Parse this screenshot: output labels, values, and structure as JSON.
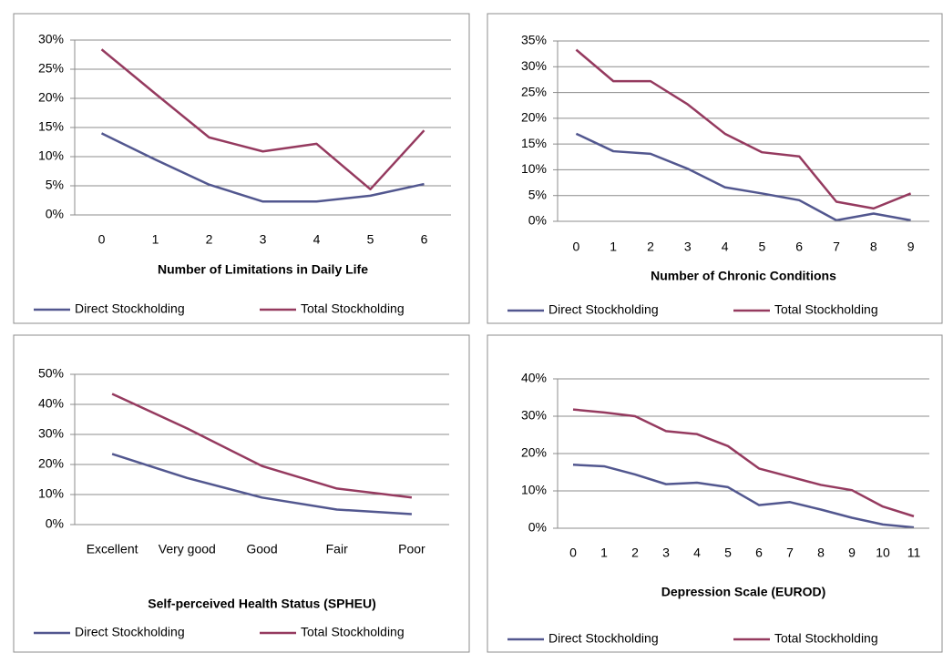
{
  "chart_data": [
    {
      "type": "line",
      "x_label": "Number of Limitations in Daily Life",
      "categories": [
        "0",
        "1",
        "2",
        "3",
        "4",
        "5",
        "6"
      ],
      "series": [
        {
          "name": "Direct Stockholding",
          "color": "#52578f",
          "values": [
            14,
            9.5,
            5.2,
            2.3,
            2.3,
            3.3,
            5.3
          ]
        },
        {
          "name": "Total Stockholding",
          "color": "#953a5f",
          "values": [
            28.4,
            20.8,
            13.3,
            10.9,
            12.2,
            4.4,
            14.5
          ]
        }
      ],
      "ylim": [
        0,
        30
      ],
      "yticks": [
        {
          "value": 0,
          "label": "0%"
        },
        {
          "value": 5,
          "label": "5%"
        },
        {
          "value": 10,
          "label": "10%"
        },
        {
          "value": 15,
          "label": "15%"
        },
        {
          "value": 20,
          "label": "20%"
        },
        {
          "value": 25,
          "label": "25%"
        },
        {
          "value": 30,
          "label": "30%"
        }
      ],
      "grid": true,
      "legend": "bottom"
    },
    {
      "type": "line",
      "x_label": "Number of Chronic Conditions",
      "categories": [
        "0",
        "1",
        "2",
        "3",
        "4",
        "5",
        "6",
        "7",
        "8",
        "9"
      ],
      "series": [
        {
          "name": "Direct Stockholding",
          "color": "#52578f",
          "values": [
            17,
            13.6,
            13.1,
            10.2,
            6.6,
            5.4,
            4.1,
            0.2,
            1.5,
            0.2
          ]
        },
        {
          "name": "Total Stockholding",
          "color": "#953a5f",
          "values": [
            33.3,
            27.2,
            27.2,
            22.7,
            17,
            13.4,
            12.6,
            3.8,
            2.5,
            5.4
          ]
        }
      ],
      "ylim": [
        0,
        35
      ],
      "yticks": [
        {
          "value": 0,
          "label": "0%"
        },
        {
          "value": 5,
          "label": "5%"
        },
        {
          "value": 10,
          "label": "10%"
        },
        {
          "value": 15,
          "label": "15%"
        },
        {
          "value": 20,
          "label": "20%"
        },
        {
          "value": 25,
          "label": "25%"
        },
        {
          "value": 30,
          "label": "30%"
        },
        {
          "value": 35,
          "label": "35%"
        }
      ],
      "grid": true,
      "legend": "bottom"
    },
    {
      "type": "line",
      "x_label": "Self-perceived Health Status (SPHEU)",
      "categories": [
        "Excellent",
        "Very good",
        "Good",
        "Fair",
        "Poor"
      ],
      "series": [
        {
          "name": "Direct Stockholding",
          "color": "#52578f",
          "values": [
            23.5,
            15.5,
            9,
            5,
            3.5
          ]
        },
        {
          "name": "Total Stockholding",
          "color": "#953a5f",
          "values": [
            43.5,
            32,
            19.5,
            12,
            9
          ]
        }
      ],
      "ylim": [
        0,
        50
      ],
      "yticks": [
        {
          "value": 0,
          "label": "0%"
        },
        {
          "value": 10,
          "label": "10%"
        },
        {
          "value": 20,
          "label": "20%"
        },
        {
          "value": 30,
          "label": "30%"
        },
        {
          "value": 40,
          "label": "40%"
        },
        {
          "value": 50,
          "label": "50%"
        }
      ],
      "grid": true,
      "legend": "bottom"
    },
    {
      "type": "line",
      "x_label": "Depression Scale (EUROD)",
      "categories": [
        "0",
        "1",
        "2",
        "3",
        "4",
        "5",
        "6",
        "7",
        "8",
        "9",
        "10",
        "11"
      ],
      "series": [
        {
          "name": "Direct Stockholding",
          "color": "#52578f",
          "values": [
            17,
            16.6,
            14.4,
            11.8,
            12.2,
            11,
            6.2,
            7,
            5,
            2.8,
            1,
            0.2
          ]
        },
        {
          "name": "Total Stockholding",
          "color": "#953a5f",
          "values": [
            31.8,
            31,
            30,
            26,
            25.2,
            22,
            16,
            13.8,
            11.6,
            10.2,
            5.8,
            3.2
          ]
        }
      ],
      "ylim": [
        0,
        40
      ],
      "yticks": [
        {
          "value": 0,
          "label": "0%"
        },
        {
          "value": 10,
          "label": "10%"
        },
        {
          "value": 20,
          "label": "20%"
        },
        {
          "value": 30,
          "label": "30%"
        },
        {
          "value": 40,
          "label": "40%"
        }
      ],
      "grid": true,
      "legend": "bottom"
    }
  ]
}
